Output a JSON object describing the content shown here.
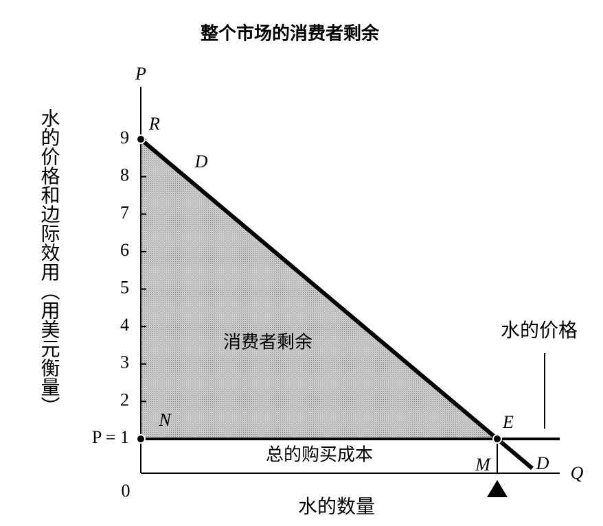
{
  "title": "整个市场的消费者剩余",
  "y_axis": {
    "symbol": "P",
    "label": "水的价格和边际效用（用美元衡量）",
    "ylim": [
      0,
      10.4
    ],
    "yticks": [
      {
        "value": 1,
        "label": "P = 1"
      },
      2,
      3,
      4,
      5,
      6,
      7,
      8,
      9
    ]
  },
  "x_axis": {
    "symbol": "Q",
    "label": "水的数量",
    "origin": "0"
  },
  "points": [
    "R",
    "N",
    "E",
    "M"
  ],
  "demand_labels": [
    "D",
    "D"
  ],
  "areas": {
    "consumer_surplus": "消费者剩余",
    "total_cost": "总的购买成本"
  },
  "price_label": "水的价格"
}
